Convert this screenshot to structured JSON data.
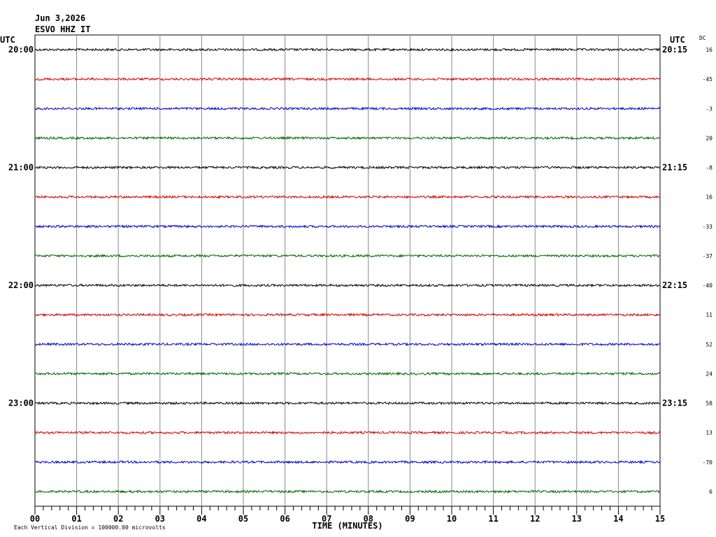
{
  "header": {
    "date": "Jun 3,2026",
    "station": "ESVO HHZ IT"
  },
  "left_axis": {
    "title": "UTC",
    "labels": [
      "20:00",
      "21:00",
      "22:00",
      "23:00"
    ]
  },
  "right_axis": {
    "title": "UTC",
    "labels": [
      "20:15",
      "21:15",
      "22:15",
      "23:15"
    ]
  },
  "dc": {
    "title": "DC",
    "values": [
      16,
      -45,
      -3,
      20,
      -8,
      16,
      -33,
      -37,
      -40,
      11,
      52,
      24,
      58,
      13,
      -70,
      6
    ]
  },
  "x_axis": {
    "labels": [
      "00",
      "01",
      "02",
      "03",
      "04",
      "05",
      "06",
      "07",
      "08",
      "09",
      "10",
      "11",
      "12",
      "13",
      "14",
      "15"
    ],
    "title": "TIME (MINUTES)"
  },
  "footer": "Each Vertical Division = 100000.00 microvolts",
  "trace_colors": [
    "#000000",
    "#d40000",
    "#0000cc",
    "#006400"
  ]
}
